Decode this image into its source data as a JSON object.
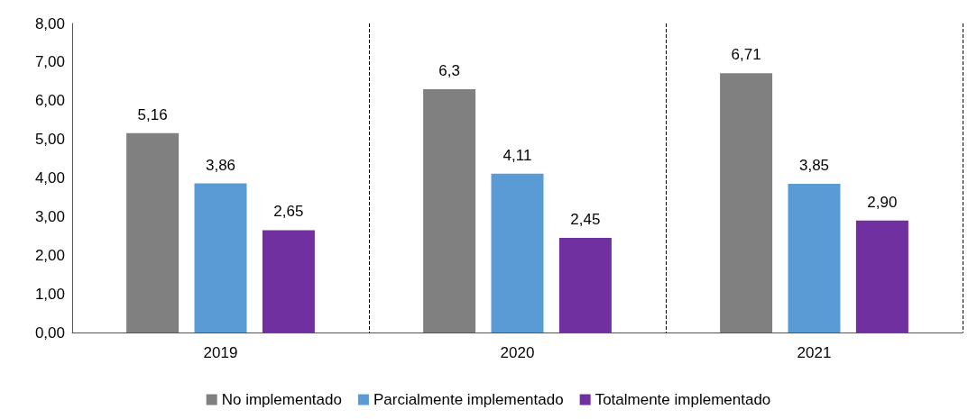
{
  "chart_data": {
    "type": "bar",
    "categories": [
      "2019",
      "2020",
      "2021"
    ],
    "series": [
      {
        "name": "No implementado",
        "color": "#808080",
        "values": [
          5.16,
          6.3,
          6.71
        ],
        "value_labels": [
          "5,16",
          "6,3",
          "6,71"
        ]
      },
      {
        "name": "Parcialmente implementado",
        "color": "#5b9bd5",
        "values": [
          3.86,
          4.11,
          3.85
        ],
        "value_labels": [
          "3,86",
          "4,11",
          "3,85"
        ]
      },
      {
        "name": "Totalmente implementado",
        "color": "#7030a0",
        "values": [
          2.65,
          2.45,
          2.9
        ],
        "value_labels": [
          "2,65",
          "2,45",
          "2,90"
        ]
      }
    ],
    "ylim": [
      0,
      8
    ],
    "yticks": [
      {
        "value": 0,
        "label": "0,00"
      },
      {
        "value": 1,
        "label": "1,00"
      },
      {
        "value": 2,
        "label": "2,00"
      },
      {
        "value": 3,
        "label": "3,00"
      },
      {
        "value": 4,
        "label": "4,00"
      },
      {
        "value": 5,
        "label": "5,00"
      },
      {
        "value": 6,
        "label": "6,00"
      },
      {
        "value": 7,
        "label": "7,00"
      },
      {
        "value": 8,
        "label": "8,00"
      }
    ],
    "grid": "x",
    "legend": "bottom"
  }
}
